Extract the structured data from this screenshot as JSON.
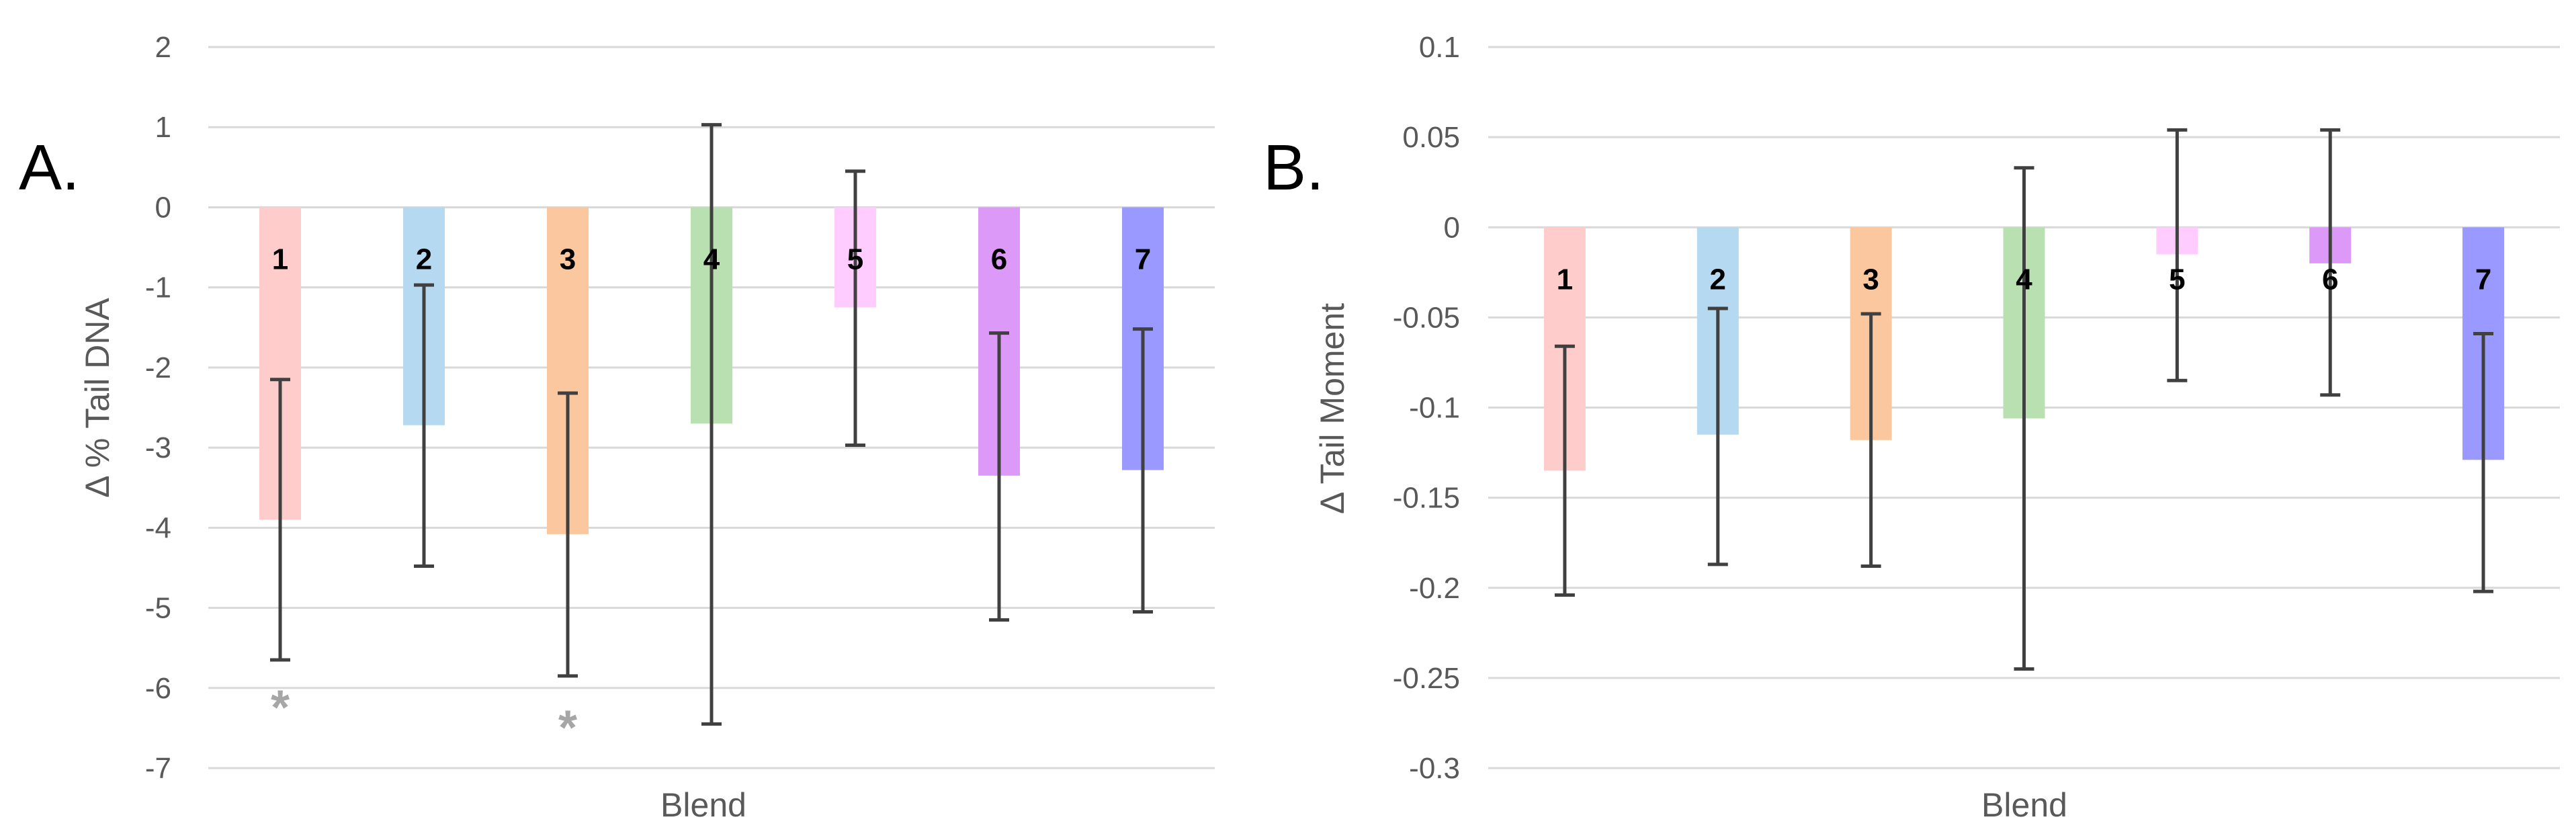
{
  "chart_data": [
    {
      "type": "bar",
      "panel_label": "A.",
      "xlabel": "Blend",
      "ylabel": "Δ % Tail DNA",
      "ylim": [
        -7,
        2
      ],
      "ytick_step": 1,
      "yticks": [
        "2",
        "1",
        "0",
        "-1",
        "-2",
        "-3",
        "-4",
        "-5",
        "-6",
        "-7"
      ],
      "grid": true,
      "categories": [
        "1",
        "2",
        "3",
        "4",
        "5",
        "6",
        "7"
      ],
      "values": [
        -3.9,
        -2.72,
        -4.08,
        -2.7,
        -1.25,
        -3.35,
        -3.28
      ],
      "error_low": [
        -5.65,
        -4.48,
        -5.85,
        -6.45,
        -2.97,
        -5.15,
        -5.05
      ],
      "error_high": [
        -2.15,
        -0.97,
        -2.32,
        1.03,
        0.45,
        -1.57,
        -1.52
      ],
      "colors": [
        "#ffcccc",
        "#b4d9f0",
        "#fbc79e",
        "#b9e0b1",
        "#ffccff",
        "#dd99f7",
        "#9999ff"
      ],
      "significance": [
        {
          "category": "1",
          "label": "*",
          "y": -6.1
        },
        {
          "category": "3",
          "label": "*",
          "y": -6.35
        }
      ]
    },
    {
      "type": "bar",
      "panel_label": "B.",
      "xlabel": "Blend",
      "ylabel": "Δ Tail Moment",
      "ylim": [
        -0.3,
        0.1
      ],
      "ytick_step": 0.05,
      "yticks": [
        "0.1",
        "0.05",
        "0",
        "-0.05",
        "-0.1",
        "-0.15",
        "-0.2",
        "-0.25",
        "-0.3"
      ],
      "grid": true,
      "categories": [
        "1",
        "2",
        "3",
        "4",
        "5",
        "6",
        "7"
      ],
      "values": [
        -0.135,
        -0.115,
        -0.118,
        -0.106,
        -0.015,
        -0.02,
        -0.129
      ],
      "error_low": [
        -0.204,
        -0.187,
        -0.188,
        -0.245,
        -0.085,
        -0.093,
        -0.202
      ],
      "error_high": [
        -0.066,
        -0.045,
        -0.048,
        0.033,
        0.054,
        0.054,
        -0.059
      ],
      "colors": [
        "#ffcccc",
        "#b4d9f0",
        "#fbc79e",
        "#b9e0b1",
        "#ffccff",
        "#dd99f7",
        "#9999ff"
      ],
      "significance": []
    }
  ]
}
